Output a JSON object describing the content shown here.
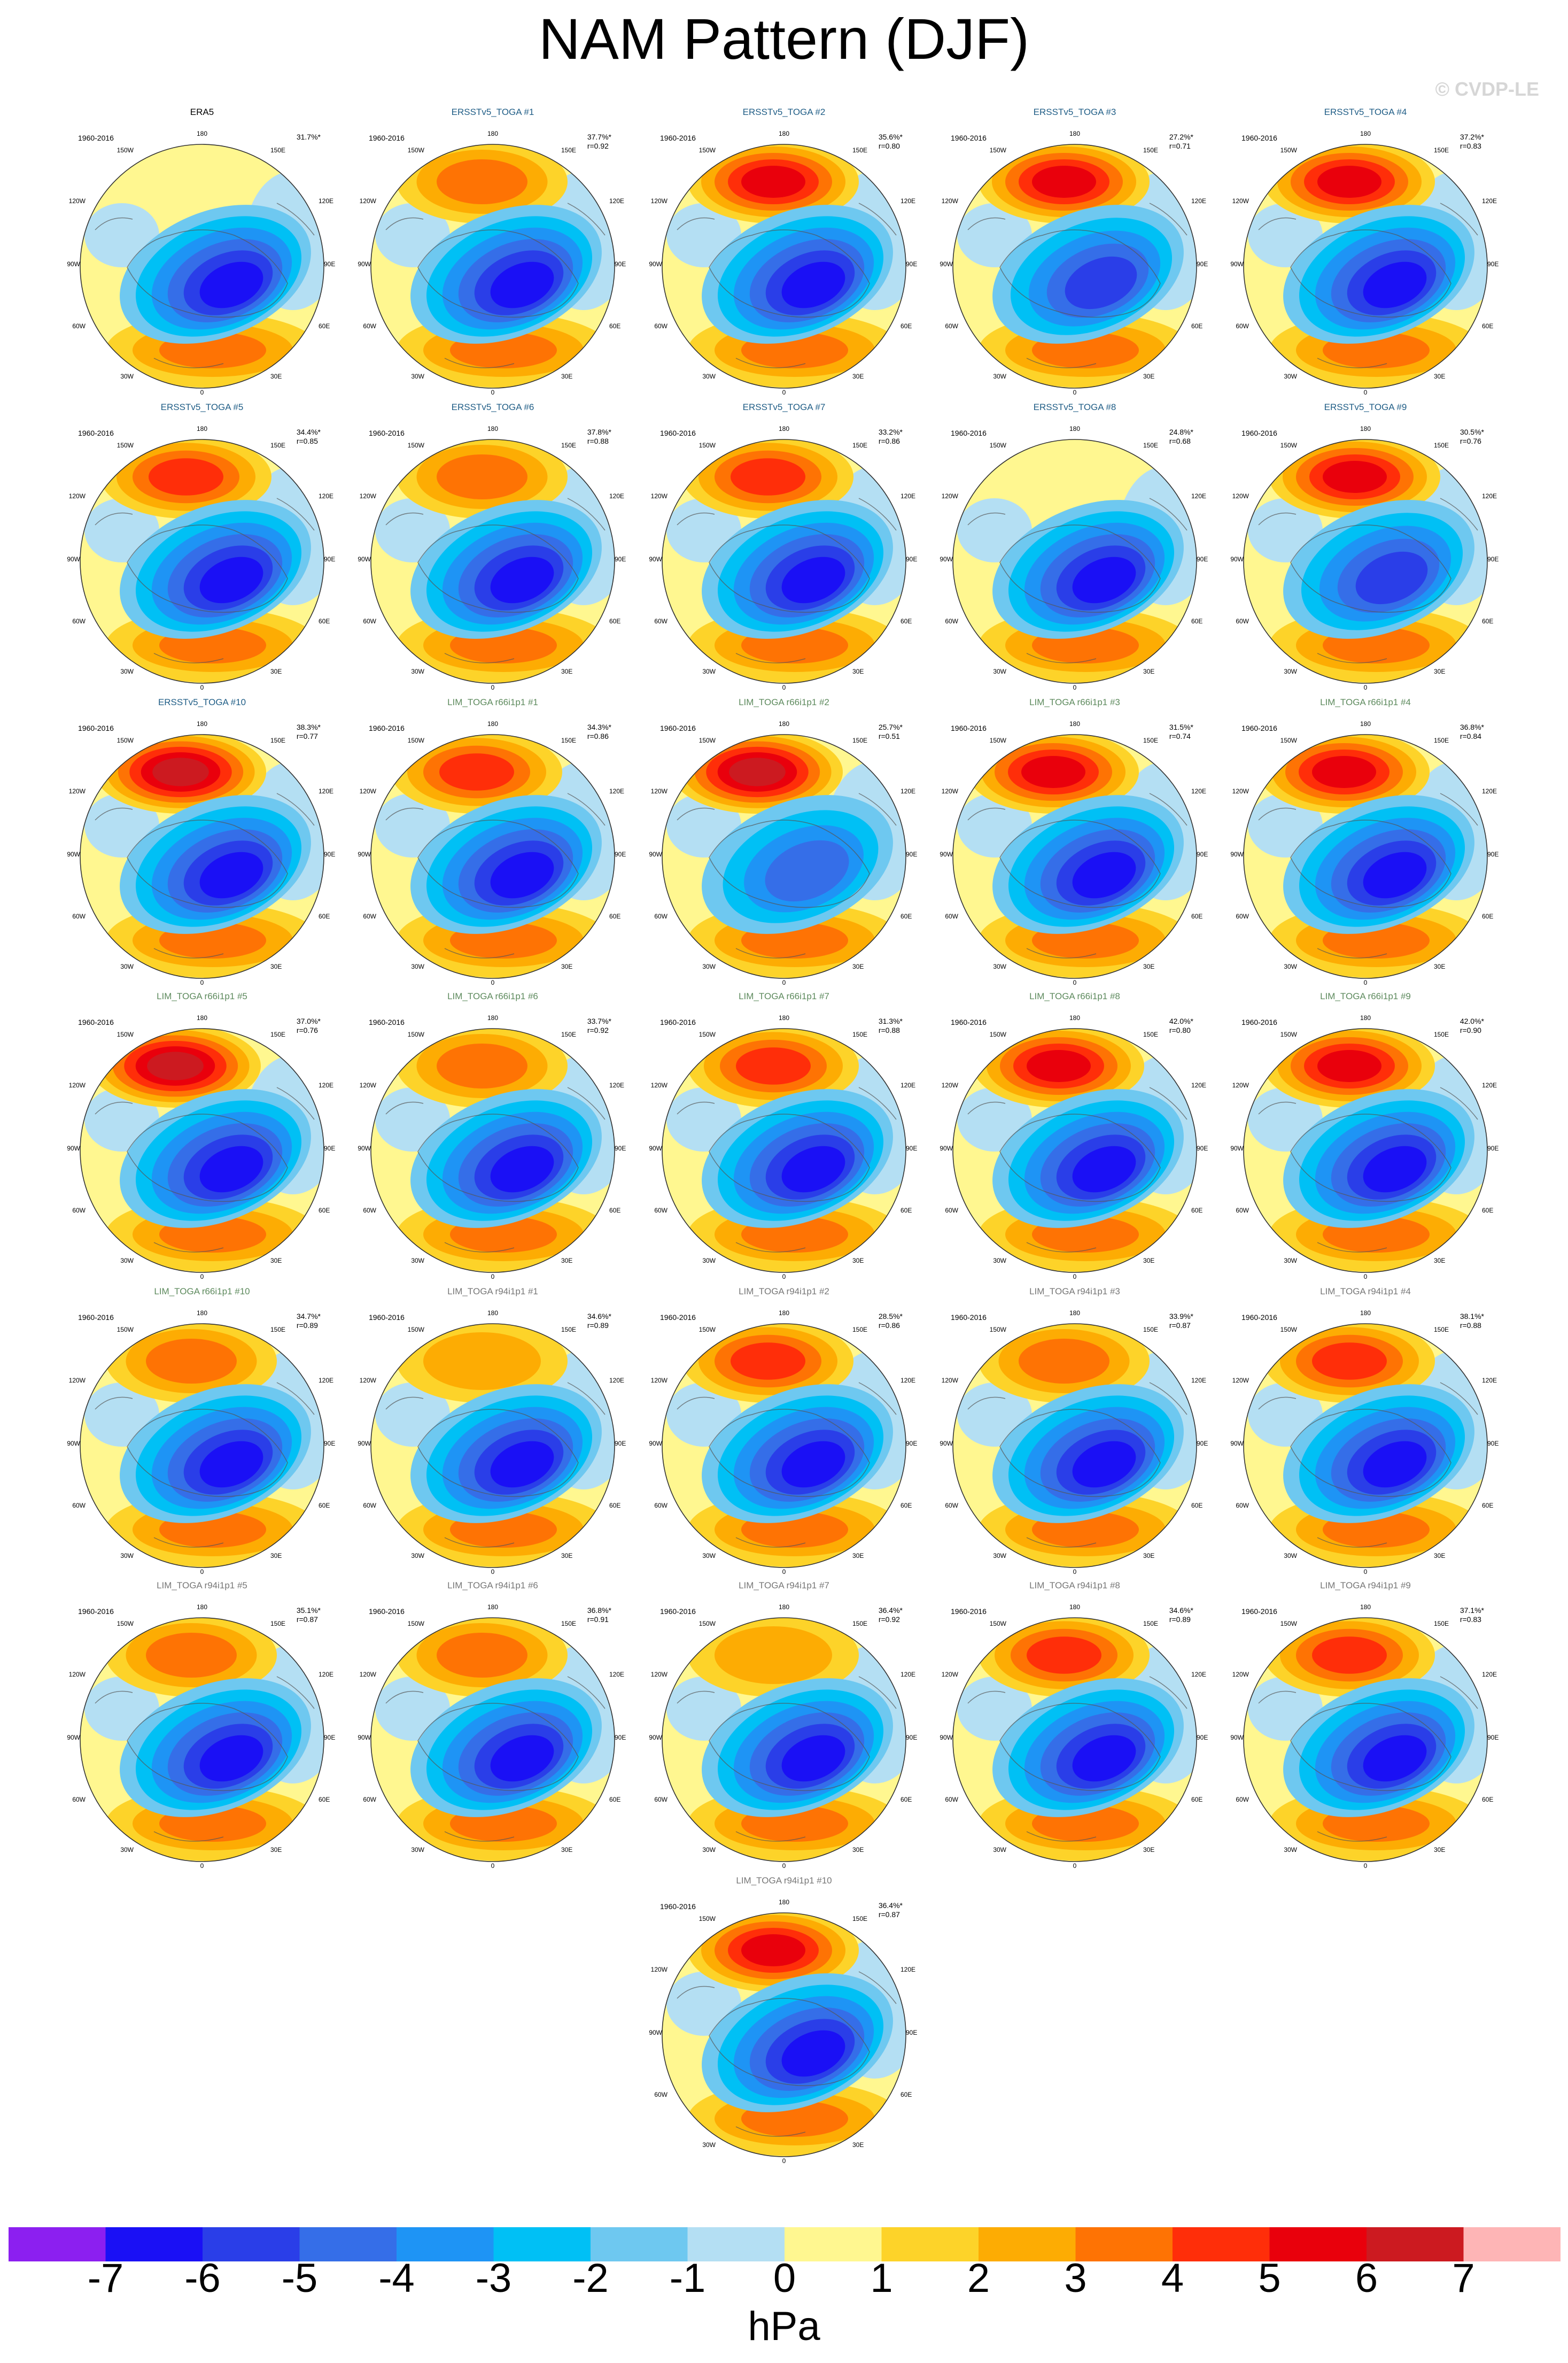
{
  "title": "NAM Pattern (DJF)",
  "watermark": "© CVDP-LE",
  "period": "1960-2016",
  "lon_labels": {
    "top": "180",
    "upper_left": "150W",
    "upper_right": "150E",
    "left_upper": "120W",
    "right_upper": "120E",
    "left": "90W",
    "right": "90E",
    "left_lower": "60W",
    "right_lower": "60E",
    "lower_left": "30W",
    "lower_right": "30E",
    "bottom": "0"
  },
  "panels": [
    {
      "title": "ERA5",
      "pct": "31.7%*",
      "r": "",
      "color": "#000000",
      "red": 0,
      "red_dx": 0,
      "blue": 6
    },
    {
      "title": "ERSSTv5_TOGA #1",
      "pct": "37.7%*",
      "r": "r=0.92",
      "color": "#1f5d86",
      "red": 3,
      "red_dx": 0,
      "blue": 6
    },
    {
      "title": "ERSSTv5_TOGA #2",
      "pct": "35.6%*",
      "r": "r=0.80",
      "color": "#1f5d86",
      "red": 5,
      "red_dx": 0,
      "blue": 6
    },
    {
      "title": "ERSSTv5_TOGA #3",
      "pct": "27.2%*",
      "r": "r=0.71",
      "color": "#1f5d86",
      "red": 5,
      "red_dx": 0,
      "blue": 5
    },
    {
      "title": "ERSSTv5_TOGA #4",
      "pct": "37.2%*",
      "r": "r=0.83",
      "color": "#1f5d86",
      "red": 5,
      "red_dx": -10,
      "blue": 6
    },
    {
      "title": "ERSSTv5_TOGA #5",
      "pct": "34.4%*",
      "r": "r=0.85",
      "color": "#1f5d86",
      "red": 4,
      "red_dx": -10,
      "blue": 6
    },
    {
      "title": "ERSSTv5_TOGA #6",
      "pct": "37.8%*",
      "r": "r=0.88",
      "color": "#1f5d86",
      "red": 3,
      "red_dx": 0,
      "blue": 6
    },
    {
      "title": "ERSSTv5_TOGA #7",
      "pct": "33.2%*",
      "r": "r=0.86",
      "color": "#1f5d86",
      "red": 4,
      "red_dx": -10,
      "blue": 6
    },
    {
      "title": "ERSSTv5_TOGA #8",
      "pct": "24.8%*",
      "r": "r=0.68",
      "color": "#1f5d86",
      "red": 0,
      "red_dx": 0,
      "blue": 6
    },
    {
      "title": "ERSSTv5_TOGA #9",
      "pct": "30.5%*",
      "r": "r=0.76",
      "color": "#1f5d86",
      "red": 5,
      "red_dx": 0,
      "blue": 5
    },
    {
      "title": "ERSSTv5_TOGA #10",
      "pct": "38.3%*",
      "r": "r=0.77",
      "color": "#1f5d86",
      "red": 6,
      "red_dx": -20,
      "blue": 6
    },
    {
      "title": "LIM_TOGA r66i1p1 #1",
      "pct": "34.3%*",
      "r": "r=0.86",
      "color": "#5d8a5d",
      "red": 4,
      "red_dx": -10,
      "blue": 6
    },
    {
      "title": "LIM_TOGA r66i1p1 #2",
      "pct": "25.7%*",
      "r": "r=0.51",
      "color": "#5d8a5d",
      "red": 6,
      "red_dx": -30,
      "blue": 4
    },
    {
      "title": "LIM_TOGA r66i1p1 #3",
      "pct": "31.5%*",
      "r": "r=0.74",
      "color": "#5d8a5d",
      "red": 5,
      "red_dx": -20,
      "blue": 6
    },
    {
      "title": "LIM_TOGA r66i1p1 #4",
      "pct": "36.8%*",
      "r": "r=0.84",
      "color": "#5d8a5d",
      "red": 5,
      "red_dx": -20,
      "blue": 6
    },
    {
      "title": "LIM_TOGA r66i1p1 #5",
      "pct": "37.0%*",
      "r": "r=0.76",
      "color": "#5d8a5d",
      "red": 6,
      "red_dx": -30,
      "blue": 6
    },
    {
      "title": "LIM_TOGA r66i1p1 #6",
      "pct": "33.7%*",
      "r": "r=0.92",
      "color": "#5d8a5d",
      "red": 3,
      "red_dx": 0,
      "blue": 6
    },
    {
      "title": "LIM_TOGA r66i1p1 #7",
      "pct": "31.3%*",
      "r": "r=0.88",
      "color": "#5d8a5d",
      "red": 4,
      "red_dx": 0,
      "blue": 6
    },
    {
      "title": "LIM_TOGA r66i1p1 #8",
      "pct": "42.0%*",
      "r": "r=0.80",
      "color": "#5d8a5d",
      "red": 5,
      "red_dx": -10,
      "blue": 6
    },
    {
      "title": "LIM_TOGA r66i1p1 #9",
      "pct": "42.0%*",
      "r": "r=0.90",
      "color": "#5d8a5d",
      "red": 5,
      "red_dx": -10,
      "blue": 6
    },
    {
      "title": "LIM_TOGA r66i1p1 #10",
      "pct": "34.7%*",
      "r": "r=0.89",
      "color": "#5d8a5d",
      "red": 3,
      "red_dx": 0,
      "blue": 6
    },
    {
      "title": "LIM_TOGA r94i1p1 #1",
      "pct": "34.6%*",
      "r": "r=0.89",
      "color": "#777777",
      "red": 2,
      "red_dx": 0,
      "blue": 6
    },
    {
      "title": "LIM_TOGA r94i1p1 #2",
      "pct": "28.5%*",
      "r": "r=0.86",
      "color": "#777777",
      "red": 4,
      "red_dx": -10,
      "blue": 6
    },
    {
      "title": "LIM_TOGA r94i1p1 #3",
      "pct": "33.9%*",
      "r": "r=0.87",
      "color": "#777777",
      "red": 3,
      "red_dx": 0,
      "blue": 6
    },
    {
      "title": "LIM_TOGA r94i1p1 #4",
      "pct": "38.1%*",
      "r": "r=0.88",
      "color": "#777777",
      "red": 4,
      "red_dx": -10,
      "blue": 6
    },
    {
      "title": "LIM_TOGA r94i1p1 #5",
      "pct": "35.1%*",
      "r": "r=0.87",
      "color": "#777777",
      "red": 3,
      "red_dx": 0,
      "blue": 6
    },
    {
      "title": "LIM_TOGA r94i1p1 #6",
      "pct": "36.8%*",
      "r": "r=0.91",
      "color": "#777777",
      "red": 3,
      "red_dx": 0,
      "blue": 6
    },
    {
      "title": "LIM_TOGA r94i1p1 #7",
      "pct": "36.4%*",
      "r": "r=0.92",
      "color": "#777777",
      "red": 2,
      "red_dx": 0,
      "blue": 6
    },
    {
      "title": "LIM_TOGA r94i1p1 #8",
      "pct": "34.6%*",
      "r": "r=0.89",
      "color": "#777777",
      "red": 4,
      "red_dx": 0,
      "blue": 6
    },
    {
      "title": "LIM_TOGA r94i1p1 #9",
      "pct": "37.1%*",
      "r": "r=0.83",
      "color": "#777777",
      "red": 4,
      "red_dx": -10,
      "blue": 6
    },
    {
      "title": "LIM_TOGA r94i1p1 #10",
      "pct": "36.4%*",
      "r": "r=0.87",
      "color": "#777777",
      "red": 5,
      "red_dx": 0,
      "blue": 6
    }
  ],
  "colorbar": {
    "colors": [
      "#8c1ff0",
      "#1a10f5",
      "#2a3ee8",
      "#356ee8",
      "#1e94f5",
      "#00c0f5",
      "#6ec8f0",
      "#b4dff3",
      "#fff790",
      "#fdd329",
      "#fdac03",
      "#fe7304",
      "#ff2e09",
      "#e9000c",
      "#cc1a20",
      "#feb5b6"
    ],
    "labels": [
      "-7",
      "-6",
      "-5",
      "-4",
      "-3",
      "-2",
      "-1",
      "0",
      "1",
      "2",
      "3",
      "4",
      "5",
      "6",
      "7"
    ],
    "units": "hPa"
  }
}
